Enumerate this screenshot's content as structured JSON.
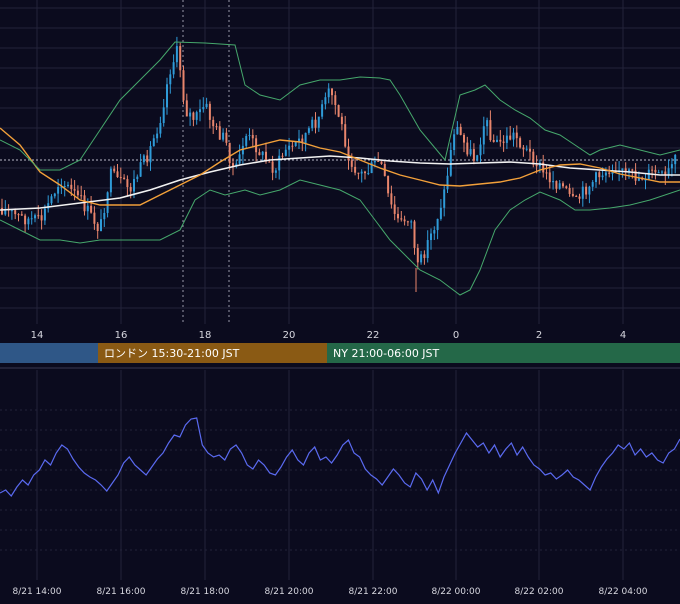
{
  "colors": {
    "background": "#0b0b1e",
    "grid": "#23233a",
    "candle_up": "#2f9bd8",
    "candle_down": "#e8856c",
    "sma_white": "#f2f2f2",
    "ma_orange": "#f2a03a",
    "bollinger": "#46a86c",
    "oscillator": "#5a6af0",
    "session_tokyo": "#2f5787",
    "session_london": "#8a5a14",
    "session_ny": "#246848",
    "axis_text": "#d8d8e0"
  },
  "sessions": [
    {
      "label": "",
      "color": "#2f5787"
    },
    {
      "label": "ロンドン 15:30-21:00 JST",
      "color": "#8a5a14"
    },
    {
      "label": "NY 21:00-06:00 JST",
      "color": "#246848"
    }
  ],
  "chart_data": [
    {
      "type": "candlestick",
      "title": "",
      "x_tick_labels": [
        "14",
        "16",
        "18",
        "20",
        "22",
        "0",
        "2",
        "4"
      ],
      "indicators": [
        "moving average (white)",
        "moving average (orange)",
        "bollinger bands (green)"
      ],
      "vertical_marker_lines": [
        "~17:30",
        "~18:30"
      ],
      "reference_line": "horizontal dotted line at current level",
      "grid": true
    },
    {
      "type": "line",
      "title": "",
      "x_tick_labels": [
        "8/21 14:00",
        "8/21 16:00",
        "8/21 18:00",
        "8/21 20:00",
        "8/21 22:00",
        "8/22 00:00",
        "8/22 02:00",
        "8/22 04:00"
      ],
      "series": [
        {
          "values": [
            0.22,
            0.25,
            0.19,
            0.28,
            0.35,
            0.3,
            0.4,
            0.45,
            0.55,
            0.5,
            0.62,
            0.7,
            0.66,
            0.56,
            0.48,
            0.42,
            0.38,
            0.35,
            0.3,
            0.24,
            0.32,
            0.4,
            0.52,
            0.58,
            0.5,
            0.45,
            0.4,
            0.48,
            0.56,
            0.62,
            0.72,
            0.8,
            0.78,
            0.9,
            0.96,
            0.97,
            0.7,
            0.62,
            0.58,
            0.6,
            0.55,
            0.66,
            0.7,
            0.62,
            0.5,
            0.46,
            0.55,
            0.5,
            0.42,
            0.4,
            0.48,
            0.58,
            0.65,
            0.55,
            0.5,
            0.62,
            0.68,
            0.55,
            0.58,
            0.52,
            0.6,
            0.7,
            0.75,
            0.62,
            0.58,
            0.46,
            0.4,
            0.36,
            0.3,
            0.38,
            0.46,
            0.4,
            0.32,
            0.28,
            0.42,
            0.36,
            0.25,
            0.35,
            0.22,
            0.38,
            0.5,
            0.62,
            0.72,
            0.82,
            0.75,
            0.68,
            0.72,
            0.62,
            0.7,
            0.58,
            0.66,
            0.72,
            0.6,
            0.68,
            0.58,
            0.5,
            0.46,
            0.4,
            0.42,
            0.36,
            0.4,
            0.45,
            0.38,
            0.35,
            0.3,
            0.25,
            0.38,
            0.48,
            0.56,
            0.62,
            0.7,
            0.66,
            0.72,
            0.6,
            0.66,
            0.58,
            0.62,
            0.55,
            0.52,
            0.62,
            0.66,
            0.76
          ]
        }
      ],
      "ylim": [
        0,
        1
      ],
      "grid": true
    }
  ]
}
